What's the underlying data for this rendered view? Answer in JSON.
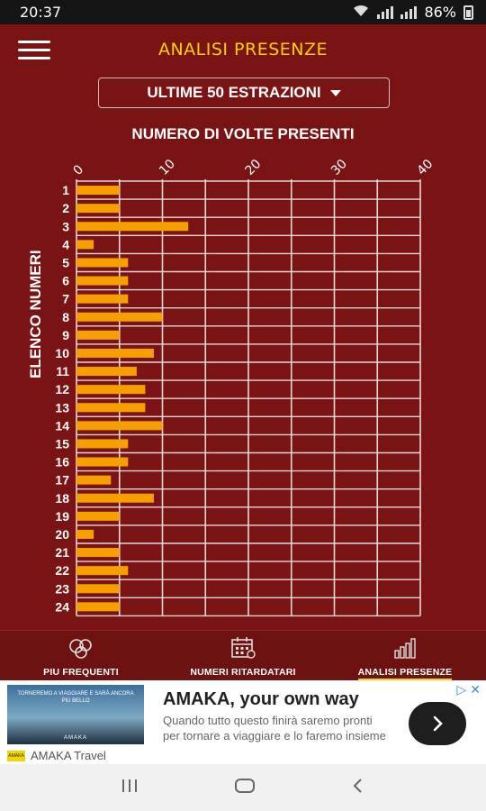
{
  "status": {
    "time": "20:37",
    "battery": "86%"
  },
  "header": {
    "title": "ANALISI PRESENZE"
  },
  "selector": {
    "value": "ULTIME 50 ESTRAZIONI"
  },
  "chart_data": {
    "type": "bar",
    "orientation": "horizontal",
    "title": "NUMERO DI VOLTE PRESENTI",
    "ylabel": "ELENCO NUMERI",
    "xlabel": "",
    "xlim": [
      0,
      40
    ],
    "xticks": [
      0,
      10,
      20,
      30,
      40
    ],
    "grid": true,
    "bar_color": "#f5a000",
    "categories": [
      "1",
      "2",
      "3",
      "4",
      "5",
      "6",
      "7",
      "8",
      "9",
      "10",
      "11",
      "12",
      "13",
      "14",
      "15",
      "16",
      "17",
      "18",
      "19",
      "20",
      "21",
      "22",
      "23",
      "24"
    ],
    "values": [
      5,
      5,
      13,
      2,
      6,
      6,
      6,
      10,
      5,
      9,
      7,
      8,
      8,
      10,
      6,
      6,
      4,
      9,
      5,
      2,
      5,
      6,
      5,
      5
    ]
  },
  "tabs": [
    {
      "label": "PIU FREQUENTI",
      "icon": "balls-icon",
      "active": false
    },
    {
      "label": "NUMERI RITARDATARI",
      "icon": "calendar-icon",
      "active": false
    },
    {
      "label": "ANALISI PRESENZE",
      "icon": "bar-chart-icon",
      "active": true
    }
  ],
  "ad": {
    "thumb_text": "TORNEREMO A VIAGGIARE E SARÀ ANCORA PIÙ BELLO",
    "thumb_brand": "AMAKA",
    "headline": "AMAKA, your own way",
    "body": "Quando tutto questo finirà saremo pronti per tornare a viaggiare e lo faremo insieme",
    "advertiser": "AMAKA Travel",
    "logo_text": "AMAKA"
  },
  "colors": {
    "background": "#7a1414",
    "accent": "#f5d20a",
    "bar": "#f5a000"
  }
}
